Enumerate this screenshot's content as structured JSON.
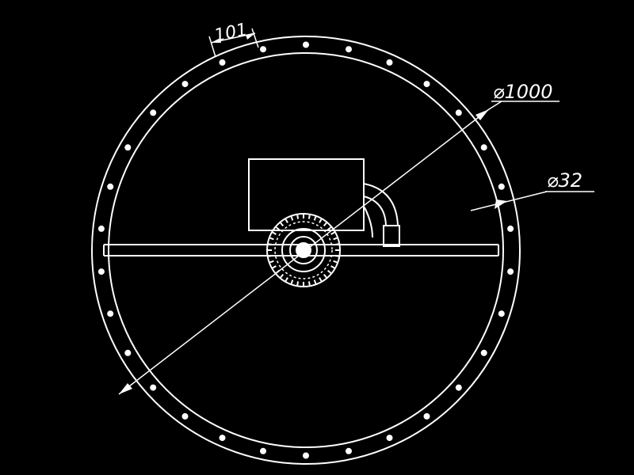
{
  "drawing": {
    "background": "#000000",
    "line_color": "#ffffff",
    "bolt_count": 30
  },
  "dimensions": {
    "outer_diameter": "⌀1000",
    "hole_diameter": "⌀32",
    "bolt_spacing": "101"
  }
}
